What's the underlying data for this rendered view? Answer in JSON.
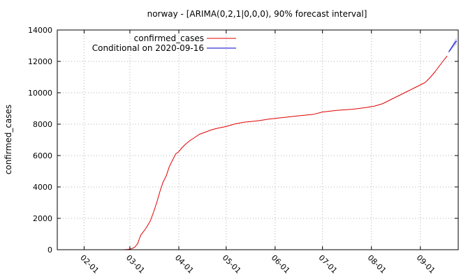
{
  "chart_data": {
    "type": "line",
    "title": "norway -  [ARIMA(0,2,1|0,0,0), 90% forecast interval]",
    "xlabel": "",
    "ylabel": "confirmed_cases",
    "ylim": [
      0,
      14000
    ],
    "yticks": [
      0,
      2000,
      4000,
      6000,
      8000,
      10000,
      12000,
      14000
    ],
    "xlim": [
      "2020-01-15",
      "2020-09-25"
    ],
    "xticks": [
      {
        "date": "2020-02-01",
        "label": "02-01"
      },
      {
        "date": "2020-03-01",
        "label": "03-01"
      },
      {
        "date": "2020-04-01",
        "label": "04-01"
      },
      {
        "date": "2020-05-01",
        "label": "05-01"
      },
      {
        "date": "2020-06-01",
        "label": "06-01"
      },
      {
        "date": "2020-07-01",
        "label": "07-01"
      },
      {
        "date": "2020-08-01",
        "label": "08-01"
      },
      {
        "date": "2020-09-01",
        "label": "09-01"
      }
    ],
    "grid": true,
    "legend_position": "top-left",
    "series": [
      {
        "name": "confirmed_cases",
        "color": "#e00000",
        "points": [
          [
            "2020-02-26",
            0
          ],
          [
            "2020-02-29",
            20
          ],
          [
            "2020-03-02",
            60
          ],
          [
            "2020-03-04",
            150
          ],
          [
            "2020-03-06",
            400
          ],
          [
            "2020-03-07",
            700
          ],
          [
            "2020-03-08",
            950
          ],
          [
            "2020-03-10",
            1200
          ],
          [
            "2020-03-12",
            1500
          ],
          [
            "2020-03-14",
            1850
          ],
          [
            "2020-03-16",
            2400
          ],
          [
            "2020-03-18",
            3000
          ],
          [
            "2020-03-20",
            3700
          ],
          [
            "2020-03-22",
            4300
          ],
          [
            "2020-03-24",
            4700
          ],
          [
            "2020-03-26",
            5300
          ],
          [
            "2020-03-28",
            5700
          ],
          [
            "2020-03-30",
            6100
          ],
          [
            "2020-04-01",
            6250
          ],
          [
            "2020-04-03",
            6500
          ],
          [
            "2020-04-05",
            6700
          ],
          [
            "2020-04-08",
            6950
          ],
          [
            "2020-04-11",
            7150
          ],
          [
            "2020-04-14",
            7350
          ],
          [
            "2020-04-18",
            7500
          ],
          [
            "2020-04-22",
            7650
          ],
          [
            "2020-04-26",
            7750
          ],
          [
            "2020-05-01",
            7850
          ],
          [
            "2020-05-06",
            8000
          ],
          [
            "2020-05-12",
            8120
          ],
          [
            "2020-05-20",
            8200
          ],
          [
            "2020-05-28",
            8320
          ],
          [
            "2020-06-06",
            8420
          ],
          [
            "2020-06-15",
            8520
          ],
          [
            "2020-06-25",
            8620
          ],
          [
            "2020-07-01",
            8770
          ],
          [
            "2020-07-10",
            8880
          ],
          [
            "2020-07-20",
            8950
          ],
          [
            "2020-07-28",
            9050
          ],
          [
            "2020-08-03",
            9150
          ],
          [
            "2020-08-08",
            9300
          ],
          [
            "2020-08-13",
            9550
          ],
          [
            "2020-08-18",
            9800
          ],
          [
            "2020-08-23",
            10050
          ],
          [
            "2020-08-28",
            10300
          ],
          [
            "2020-09-02",
            10550
          ],
          [
            "2020-09-04",
            10650
          ],
          [
            "2020-09-07",
            10950
          ],
          [
            "2020-09-10",
            11300
          ],
          [
            "2020-09-13",
            11700
          ],
          [
            "2020-09-16",
            12100
          ],
          [
            "2020-09-18",
            12350
          ]
        ]
      },
      {
        "name": "Conditional on 2020-09-16",
        "color": "#0000cc",
        "interval_color": "#9999ee",
        "points": [
          [
            "2020-09-19",
            12600
          ],
          [
            "2020-09-20",
            12750
          ],
          [
            "2020-09-21",
            12900
          ],
          [
            "2020-09-22",
            13050
          ],
          [
            "2020-09-23",
            13200
          ],
          [
            "2020-09-24",
            13300
          ]
        ],
        "lower": [
          12530,
          12650,
          12780,
          12900,
          13020,
          13100
        ],
        "upper": [
          12670,
          12850,
          13020,
          13200,
          13380,
          13500
        ]
      }
    ]
  }
}
